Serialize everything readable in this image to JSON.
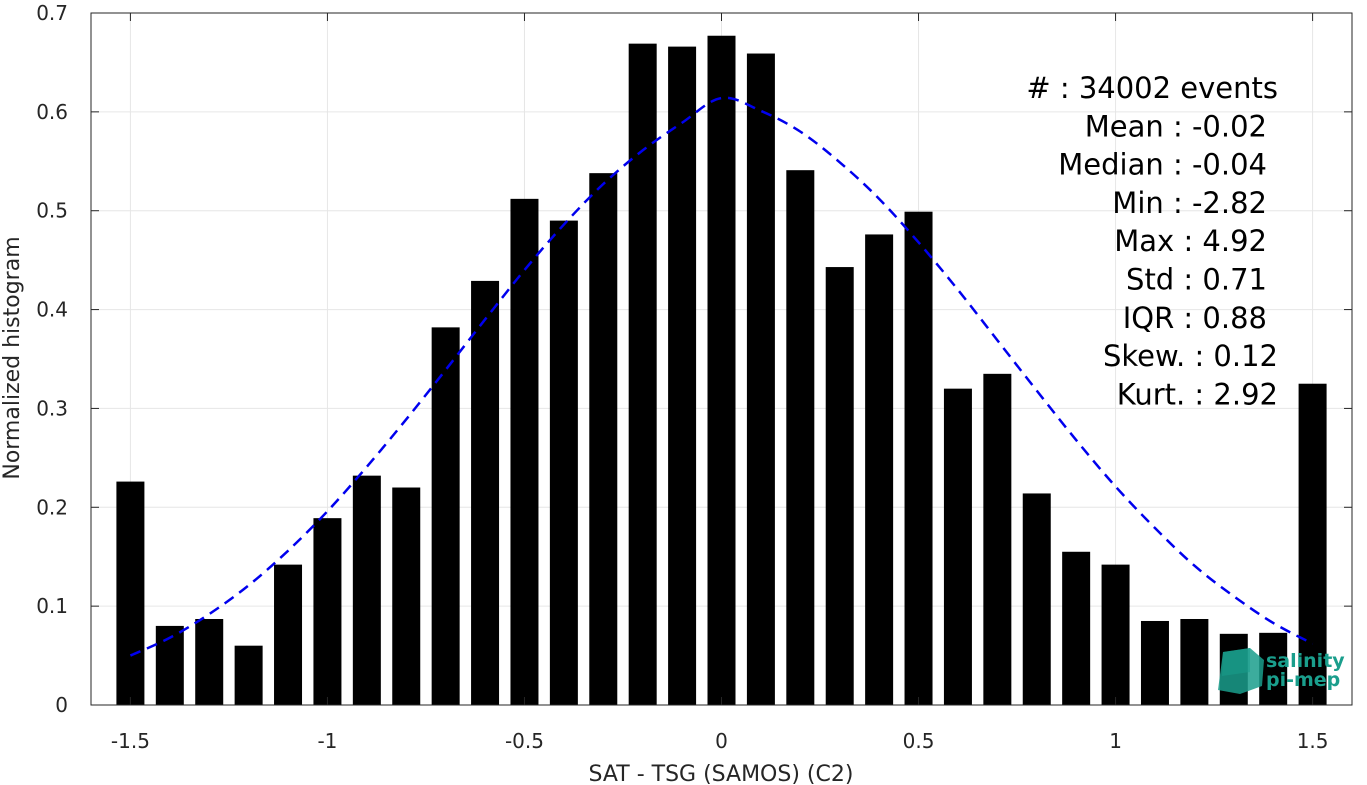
{
  "chart_data": {
    "type": "bar",
    "xlabel": "SAT - TSG (SAMOS) (C2)",
    "ylabel": "Normalized histogram",
    "xlim": [
      -1.6,
      1.6
    ],
    "ylim": [
      0,
      0.7
    ],
    "xticks": [
      -1.5,
      -1,
      -0.5,
      0,
      0.5,
      1,
      1.5
    ],
    "xtick_labels": [
      "-1.5",
      "-1",
      "-0.5",
      "0",
      "0.5",
      "1",
      "1.5"
    ],
    "yticks": [
      0,
      0.1,
      0.2,
      0.3,
      0.4,
      0.5,
      0.6,
      0.7
    ],
    "ytick_labels": [
      "0",
      "0.1",
      "0.2",
      "0.3",
      "0.4",
      "0.5",
      "0.6",
      "0.7"
    ],
    "grid": true,
    "bar_color": "#000000",
    "x": [
      -1.5,
      -1.4,
      -1.3,
      -1.2,
      -1.1,
      -1.0,
      -0.9,
      -0.8,
      -0.7,
      -0.6,
      -0.5,
      -0.4,
      -0.3,
      -0.2,
      -0.1,
      0.0,
      0.1,
      0.2,
      0.3,
      0.4,
      0.5,
      0.6,
      0.7,
      0.8,
      0.9,
      1.0,
      1.1,
      1.2,
      1.3,
      1.4,
      1.5
    ],
    "values": [
      0.226,
      0.08,
      0.087,
      0.06,
      0.142,
      0.189,
      0.232,
      0.22,
      0.382,
      0.429,
      0.512,
      0.49,
      0.538,
      0.669,
      0.666,
      0.677,
      0.659,
      0.541,
      0.443,
      0.476,
      0.499,
      0.32,
      0.335,
      0.214,
      0.155,
      0.142,
      0.085,
      0.087,
      0.072,
      0.073,
      0.325
    ],
    "fit": {
      "style": "dashed",
      "color": "#0000ee",
      "x": [
        -1.5,
        -1.4,
        -1.3,
        -1.2,
        -1.1,
        -1.0,
        -0.9,
        -0.8,
        -0.7,
        -0.6,
        -0.5,
        -0.4,
        -0.3,
        -0.2,
        -0.1,
        0.0,
        0.1,
        0.2,
        0.3,
        0.4,
        0.5,
        0.6,
        0.7,
        0.8,
        0.9,
        1.0,
        1.1,
        1.2,
        1.3,
        1.4,
        1.5
      ],
      "values": [
        0.05,
        0.068,
        0.092,
        0.121,
        0.156,
        0.196,
        0.241,
        0.289,
        0.339,
        0.39,
        0.44,
        0.486,
        0.527,
        0.561,
        0.589,
        0.614,
        0.601,
        0.58,
        0.549,
        0.512,
        0.468,
        0.42,
        0.369,
        0.318,
        0.268,
        0.221,
        0.179,
        0.141,
        0.11,
        0.083,
        0.062
      ]
    },
    "stats": [
      {
        "label": "#  : 34002 events"
      },
      {
        "label": "Mean : -0.02"
      },
      {
        "label": "Median : -0.04"
      },
      {
        "label": "Min : -2.82"
      },
      {
        "label": "Max : 4.92"
      },
      {
        "label": "Std : 0.71"
      },
      {
        "label": "IQR : 0.88"
      },
      {
        "label": "Skew. : 0.12"
      },
      {
        "label": "Kurt. : 2.92"
      }
    ]
  },
  "logo": {
    "line1": "salinity",
    "line2": "pi-mep",
    "color": "#1a9e8c"
  }
}
